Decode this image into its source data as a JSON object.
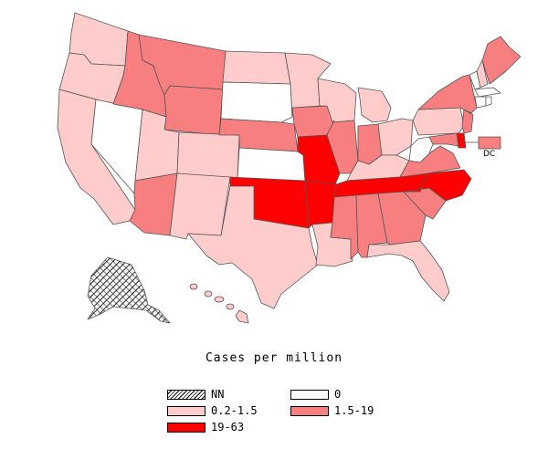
{
  "map": {
    "legend_title": "Cases per million",
    "categories": [
      {
        "key": "nn",
        "label": "NN",
        "color": "hatched"
      },
      {
        "key": "zero",
        "label": "0",
        "color": "#ffffff"
      },
      {
        "key": "low",
        "label": "0.2-1.5",
        "color": "#ffcccc"
      },
      {
        "key": "mid",
        "label": "1.5-19",
        "color": "#f77f7f"
      },
      {
        "key": "high",
        "label": "19-63",
        "color": "#ff0000"
      }
    ],
    "dc_label": "DC",
    "states": {
      "WA": "low",
      "OR": "low",
      "CA": "low",
      "NV": "zero",
      "ID": "mid",
      "MT": "mid",
      "WY": "mid",
      "UT": "low",
      "AZ": "mid",
      "CO": "low",
      "NM": "low",
      "ND": "low",
      "SD": "zero",
      "NE": "mid",
      "KS": "zero",
      "OK": "high",
      "TX": "low",
      "MN": "low",
      "IA": "mid",
      "MO": "high",
      "AR": "high",
      "LA": "low",
      "WI": "low",
      "IL": "mid",
      "MI": "low",
      "IN": "mid",
      "OH": "low",
      "KY": "low",
      "TN": "high",
      "MS": "mid",
      "AL": "mid",
      "GA": "mid",
      "FL": "low",
      "SC": "mid",
      "NC": "high",
      "VA": "mid",
      "WV": "zero",
      "PA": "low",
      "NY": "mid",
      "NJ": "mid",
      "DE": "high",
      "MD": "mid",
      "DC": "mid",
      "CT": "zero",
      "RI": "zero",
      "MA": "zero",
      "VT": "zero",
      "NH": "low",
      "ME": "mid",
      "AK": "nn",
      "HI": "low"
    }
  }
}
